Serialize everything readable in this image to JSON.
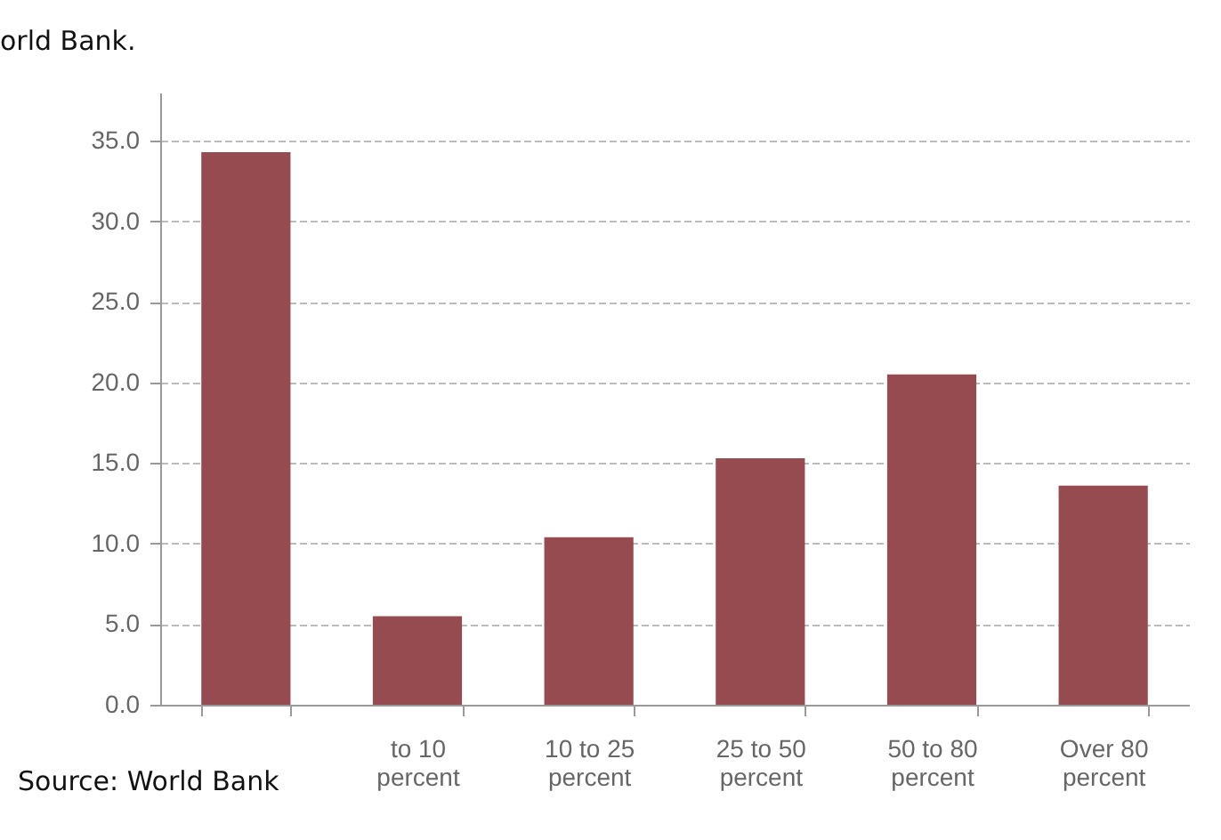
{
  "chart_data": {
    "type": "bar",
    "categories": [
      null,
      "to 10 percent",
      "10 to 25 percent",
      "25 to 50 percent",
      "50 to 80 percent",
      "Over 80 percent"
    ],
    "values": [
      34.3,
      5.5,
      10.4,
      15.3,
      20.5,
      13.6
    ],
    "color": "#964b51",
    "ylim": [
      0,
      38
    ],
    "yticks": [
      {
        "value": 0,
        "label": "0.0"
      },
      {
        "value": 5,
        "label": "5.0"
      },
      {
        "value": 10,
        "label": "10.0"
      },
      {
        "value": 15,
        "label": "15.0"
      },
      {
        "value": 20,
        "label": "20.0"
      },
      {
        "value": 25,
        "label": "25.0"
      },
      {
        "value": 30,
        "label": "30.0"
      },
      {
        "value": 35,
        "label": "35.0"
      }
    ],
    "grid": "y",
    "annotations": [
      "orld Bank.",
      "Source: World Bank"
    ]
  }
}
